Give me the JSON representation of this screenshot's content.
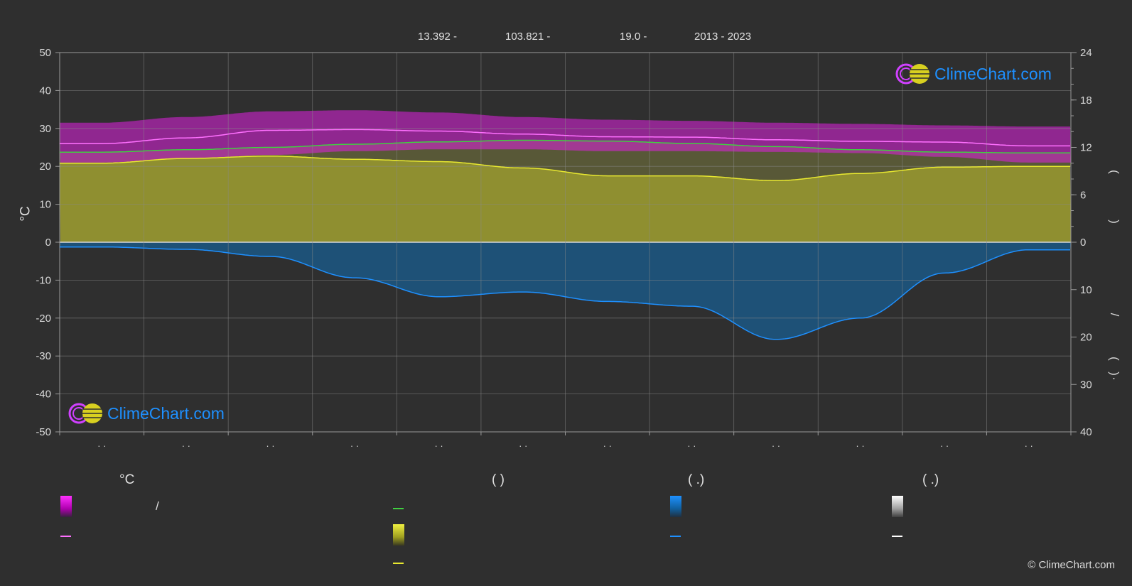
{
  "header": {
    "lat": "13.392 -",
    "lon": "103.821 -",
    "elev": "19.0 -",
    "years": "2013 - 2023"
  },
  "logo_text": "ClimeChart.com",
  "copyright": "© ClimeChart.com",
  "left_axis_label": "°C",
  "right_axis_marks": [
    "(",
    ")",
    "/",
    "(",
    ")",
    "·"
  ],
  "month_tick_text": "· ·",
  "legend": {
    "col1_title": "°C",
    "col1_text": "/",
    "col2_title": "(          )",
    "col3_title": "(   .)",
    "col4_title": "(   .)"
  },
  "colors": {
    "background": "#2f2f2f",
    "temp_band": "#e020e0",
    "temp_mean": "#ff70ff",
    "daylight": "#40d040",
    "sunshine": "#e8e830",
    "precip": "#1e90ff",
    "logo": "#1e90ff"
  },
  "chart_data": {
    "type": "area",
    "months": 12,
    "left_axis": {
      "label": "°C",
      "ylim": [
        -50,
        50
      ],
      "ticks": [
        50,
        40,
        30,
        20,
        10,
        0,
        -10,
        -20,
        -30,
        -40,
        -50
      ]
    },
    "right_axis": {
      "upper_ticks": [
        24,
        18,
        12,
        6,
        0
      ],
      "lower_ticks": [
        10,
        20,
        30,
        40
      ]
    },
    "series": [
      {
        "key": "temp_max",
        "values": [
          31.5,
          33.0,
          34.5,
          34.8,
          34.2,
          33.0,
          32.3,
          32.0,
          31.5,
          31.2,
          30.8,
          30.5
        ]
      },
      {
        "key": "temp_min",
        "values": [
          21.0,
          22.0,
          23.0,
          24.0,
          24.5,
          24.5,
          24.0,
          24.0,
          23.8,
          23.5,
          22.5,
          21.0
        ]
      },
      {
        "key": "temp_mean",
        "values": [
          26.0,
          27.5,
          29.5,
          29.7,
          29.3,
          28.5,
          27.8,
          27.7,
          27.0,
          26.6,
          26.4,
          25.4
        ]
      },
      {
        "key": "daylight_hours",
        "values": [
          11.4,
          11.7,
          12.0,
          12.4,
          12.7,
          12.9,
          12.8,
          12.5,
          12.1,
          11.7,
          11.4,
          11.3
        ]
      },
      {
        "key": "sunshine_hours",
        "values": [
          10.0,
          10.6,
          10.9,
          10.5,
          10.2,
          9.4,
          8.4,
          8.4,
          7.8,
          8.7,
          9.5,
          9.6
        ]
      },
      {
        "key": "precip_mm_per_day",
        "values": [
          1.0,
          1.5,
          3.0,
          7.5,
          11.5,
          10.5,
          12.5,
          13.5,
          20.5,
          16.0,
          6.5,
          1.6
        ]
      }
    ]
  }
}
